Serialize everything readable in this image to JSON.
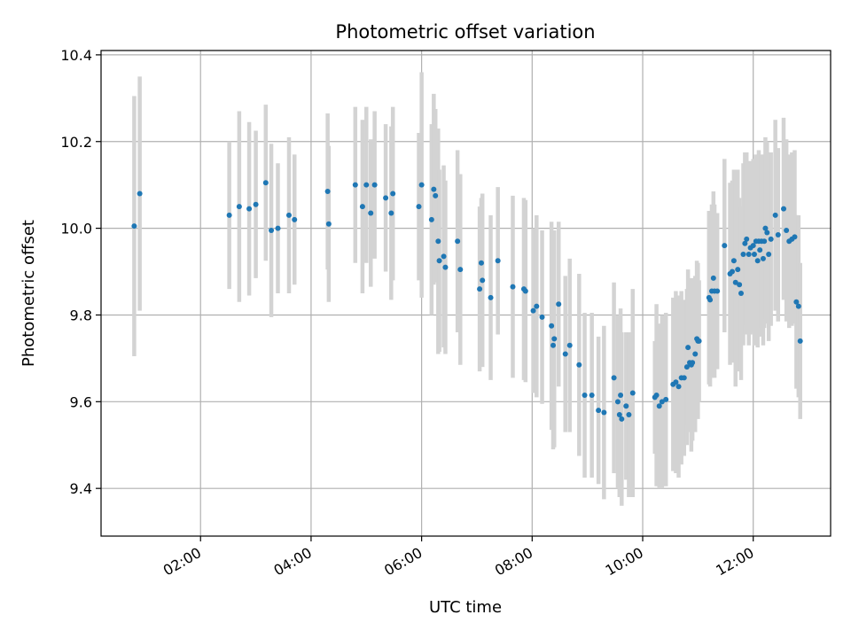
{
  "chart_data": {
    "type": "scatter",
    "title": "Photometric offset variation",
    "xlabel": "UTC time",
    "ylabel": "Photometric offset",
    "x_unit": "hours UTC",
    "xlim": [
      0.2,
      13.4
    ],
    "ylim": [
      9.29,
      10.41
    ],
    "grid": true,
    "x_ticks": [
      {
        "value": 2,
        "label": "02:00"
      },
      {
        "value": 4,
        "label": "04:00"
      },
      {
        "value": 6,
        "label": "06:00"
      },
      {
        "value": 8,
        "label": "08:00"
      },
      {
        "value": 10,
        "label": "10:00"
      },
      {
        "value": 12,
        "label": "12:00"
      }
    ],
    "y_ticks": [
      {
        "value": 9.4,
        "label": "9.4"
      },
      {
        "value": 9.6,
        "label": "9.6"
      },
      {
        "value": 9.8,
        "label": "9.8"
      },
      {
        "value": 10.0,
        "label": "10.0"
      },
      {
        "value": 10.2,
        "label": "10.2"
      },
      {
        "value": 10.4,
        "label": "10.4"
      }
    ],
    "colors": {
      "point": "#1f77b4",
      "errorbar": "#d3d3d3",
      "grid": "#b0b0b0"
    },
    "points": [
      [
        0.8,
        10.005,
        0.3
      ],
      [
        0.9,
        10.08,
        0.27
      ],
      [
        2.52,
        10.03,
        0.17
      ],
      [
        2.7,
        10.05,
        0.22
      ],
      [
        2.88,
        10.045,
        0.2
      ],
      [
        3.0,
        10.055,
        0.17
      ],
      [
        3.18,
        10.105,
        0.18
      ],
      [
        3.28,
        9.995,
        0.2
      ],
      [
        3.4,
        10.0,
        0.15
      ],
      [
        3.6,
        10.03,
        0.18
      ],
      [
        3.7,
        10.02,
        0.15
      ],
      [
        4.3,
        10.085,
        0.18
      ],
      [
        4.32,
        10.01,
        0.18
      ],
      [
        4.8,
        10.1,
        0.18
      ],
      [
        4.93,
        10.05,
        0.2
      ],
      [
        5.0,
        10.1,
        0.18
      ],
      [
        5.08,
        10.035,
        0.17
      ],
      [
        5.15,
        10.1,
        0.17
      ],
      [
        5.35,
        10.07,
        0.17
      ],
      [
        5.45,
        10.035,
        0.2
      ],
      [
        5.48,
        10.08,
        0.2
      ],
      [
        5.95,
        10.05,
        0.17
      ],
      [
        6.0,
        10.1,
        0.26
      ],
      [
        6.18,
        10.02,
        0.22
      ],
      [
        6.22,
        10.09,
        0.22
      ],
      [
        6.25,
        10.075,
        0.2
      ],
      [
        6.3,
        9.97,
        0.26
      ],
      [
        6.32,
        9.925,
        0.21
      ],
      [
        6.4,
        9.935,
        0.21
      ],
      [
        6.43,
        9.91,
        0.2
      ],
      [
        6.65,
        9.97,
        0.21
      ],
      [
        6.7,
        9.905,
        0.22
      ],
      [
        7.05,
        9.86,
        0.19
      ],
      [
        7.08,
        9.92,
        0.15
      ],
      [
        7.1,
        9.88,
        0.2
      ],
      [
        7.25,
        9.84,
        0.19
      ],
      [
        7.38,
        9.925,
        0.17
      ],
      [
        7.65,
        9.865,
        0.21
      ],
      [
        7.85,
        9.86,
        0.21
      ],
      [
        7.88,
        9.855,
        0.21
      ],
      [
        8.02,
        9.81,
        0.19
      ],
      [
        8.08,
        9.82,
        0.21
      ],
      [
        8.18,
        9.795,
        0.2
      ],
      [
        8.35,
        9.775,
        0.24
      ],
      [
        8.38,
        9.73,
        0.24
      ],
      [
        8.4,
        9.745,
        0.25
      ],
      [
        8.48,
        9.825,
        0.19
      ],
      [
        8.6,
        9.71,
        0.18
      ],
      [
        8.68,
        9.73,
        0.2
      ],
      [
        8.85,
        9.685,
        0.21
      ],
      [
        8.95,
        9.615,
        0.19
      ],
      [
        9.08,
        9.615,
        0.19
      ],
      [
        9.2,
        9.58,
        0.17
      ],
      [
        9.3,
        9.575,
        0.2
      ],
      [
        9.48,
        9.655,
        0.22
      ],
      [
        9.55,
        9.6,
        0.2
      ],
      [
        9.58,
        9.57,
        0.19
      ],
      [
        9.6,
        9.615,
        0.2
      ],
      [
        9.62,
        9.56,
        0.2
      ],
      [
        9.7,
        9.59,
        0.17
      ],
      [
        9.75,
        9.57,
        0.19
      ],
      [
        9.82,
        9.62,
        0.24
      ],
      [
        10.22,
        9.61,
        0.13
      ],
      [
        10.25,
        9.615,
        0.21
      ],
      [
        10.3,
        9.59,
        0.19
      ],
      [
        10.35,
        9.6,
        0.2
      ],
      [
        10.42,
        9.605,
        0.2
      ],
      [
        10.55,
        9.64,
        0.2
      ],
      [
        10.6,
        9.645,
        0.21
      ],
      [
        10.65,
        9.635,
        0.21
      ],
      [
        10.7,
        9.655,
        0.2
      ],
      [
        10.75,
        9.655,
        0.18
      ],
      [
        10.8,
        9.68,
        0.18
      ],
      [
        10.82,
        9.725,
        0.18
      ],
      [
        10.85,
        9.69,
        0.16
      ],
      [
        10.88,
        9.685,
        0.2
      ],
      [
        10.9,
        9.69,
        0.18
      ],
      [
        10.95,
        9.71,
        0.18
      ],
      [
        10.98,
        9.745,
        0.18
      ],
      [
        11.0,
        9.74,
        0.18
      ],
      [
        11.02,
        9.74,
        0.14
      ],
      [
        11.2,
        9.84,
        0.2
      ],
      [
        11.22,
        9.835,
        0.2
      ],
      [
        11.25,
        9.855,
        0.2
      ],
      [
        11.28,
        9.885,
        0.2
      ],
      [
        11.3,
        9.855,
        0.2
      ],
      [
        11.35,
        9.855,
        0.18
      ],
      [
        11.48,
        9.96,
        0.2
      ],
      [
        11.58,
        9.895,
        0.21
      ],
      [
        11.62,
        9.9,
        0.21
      ],
      [
        11.65,
        9.925,
        0.21
      ],
      [
        11.68,
        9.875,
        0.24
      ],
      [
        11.72,
        9.905,
        0.23
      ],
      [
        11.75,
        9.87,
        0.2
      ],
      [
        11.78,
        9.85,
        0.2
      ],
      [
        11.82,
        9.94,
        0.21
      ],
      [
        11.85,
        9.965,
        0.21
      ],
      [
        11.88,
        9.975,
        0.2
      ],
      [
        11.92,
        9.94,
        0.21
      ],
      [
        11.95,
        9.955,
        0.2
      ],
      [
        12.0,
        9.96,
        0.2
      ],
      [
        12.02,
        9.94,
        0.21
      ],
      [
        12.05,
        9.97,
        0.2
      ],
      [
        12.08,
        9.925,
        0.2
      ],
      [
        12.1,
        9.97,
        0.21
      ],
      [
        12.12,
        9.95,
        0.2
      ],
      [
        12.15,
        9.97,
        0.2
      ],
      [
        12.18,
        9.93,
        0.2
      ],
      [
        12.2,
        9.97,
        0.2
      ],
      [
        12.22,
        10.0,
        0.21
      ],
      [
        12.25,
        9.99,
        0.21
      ],
      [
        12.28,
        9.94,
        0.2
      ],
      [
        12.32,
        9.975,
        0.2
      ],
      [
        12.4,
        10.03,
        0.22
      ],
      [
        12.45,
        9.985,
        0.2
      ],
      [
        12.55,
        10.045,
        0.21
      ],
      [
        12.6,
        9.995,
        0.21
      ],
      [
        12.65,
        9.97,
        0.2
      ],
      [
        12.7,
        9.975,
        0.2
      ],
      [
        12.75,
        9.98,
        0.2
      ],
      [
        12.78,
        9.83,
        0.2
      ],
      [
        12.82,
        9.82,
        0.21
      ],
      [
        12.85,
        9.74,
        0.18
      ]
    ]
  }
}
